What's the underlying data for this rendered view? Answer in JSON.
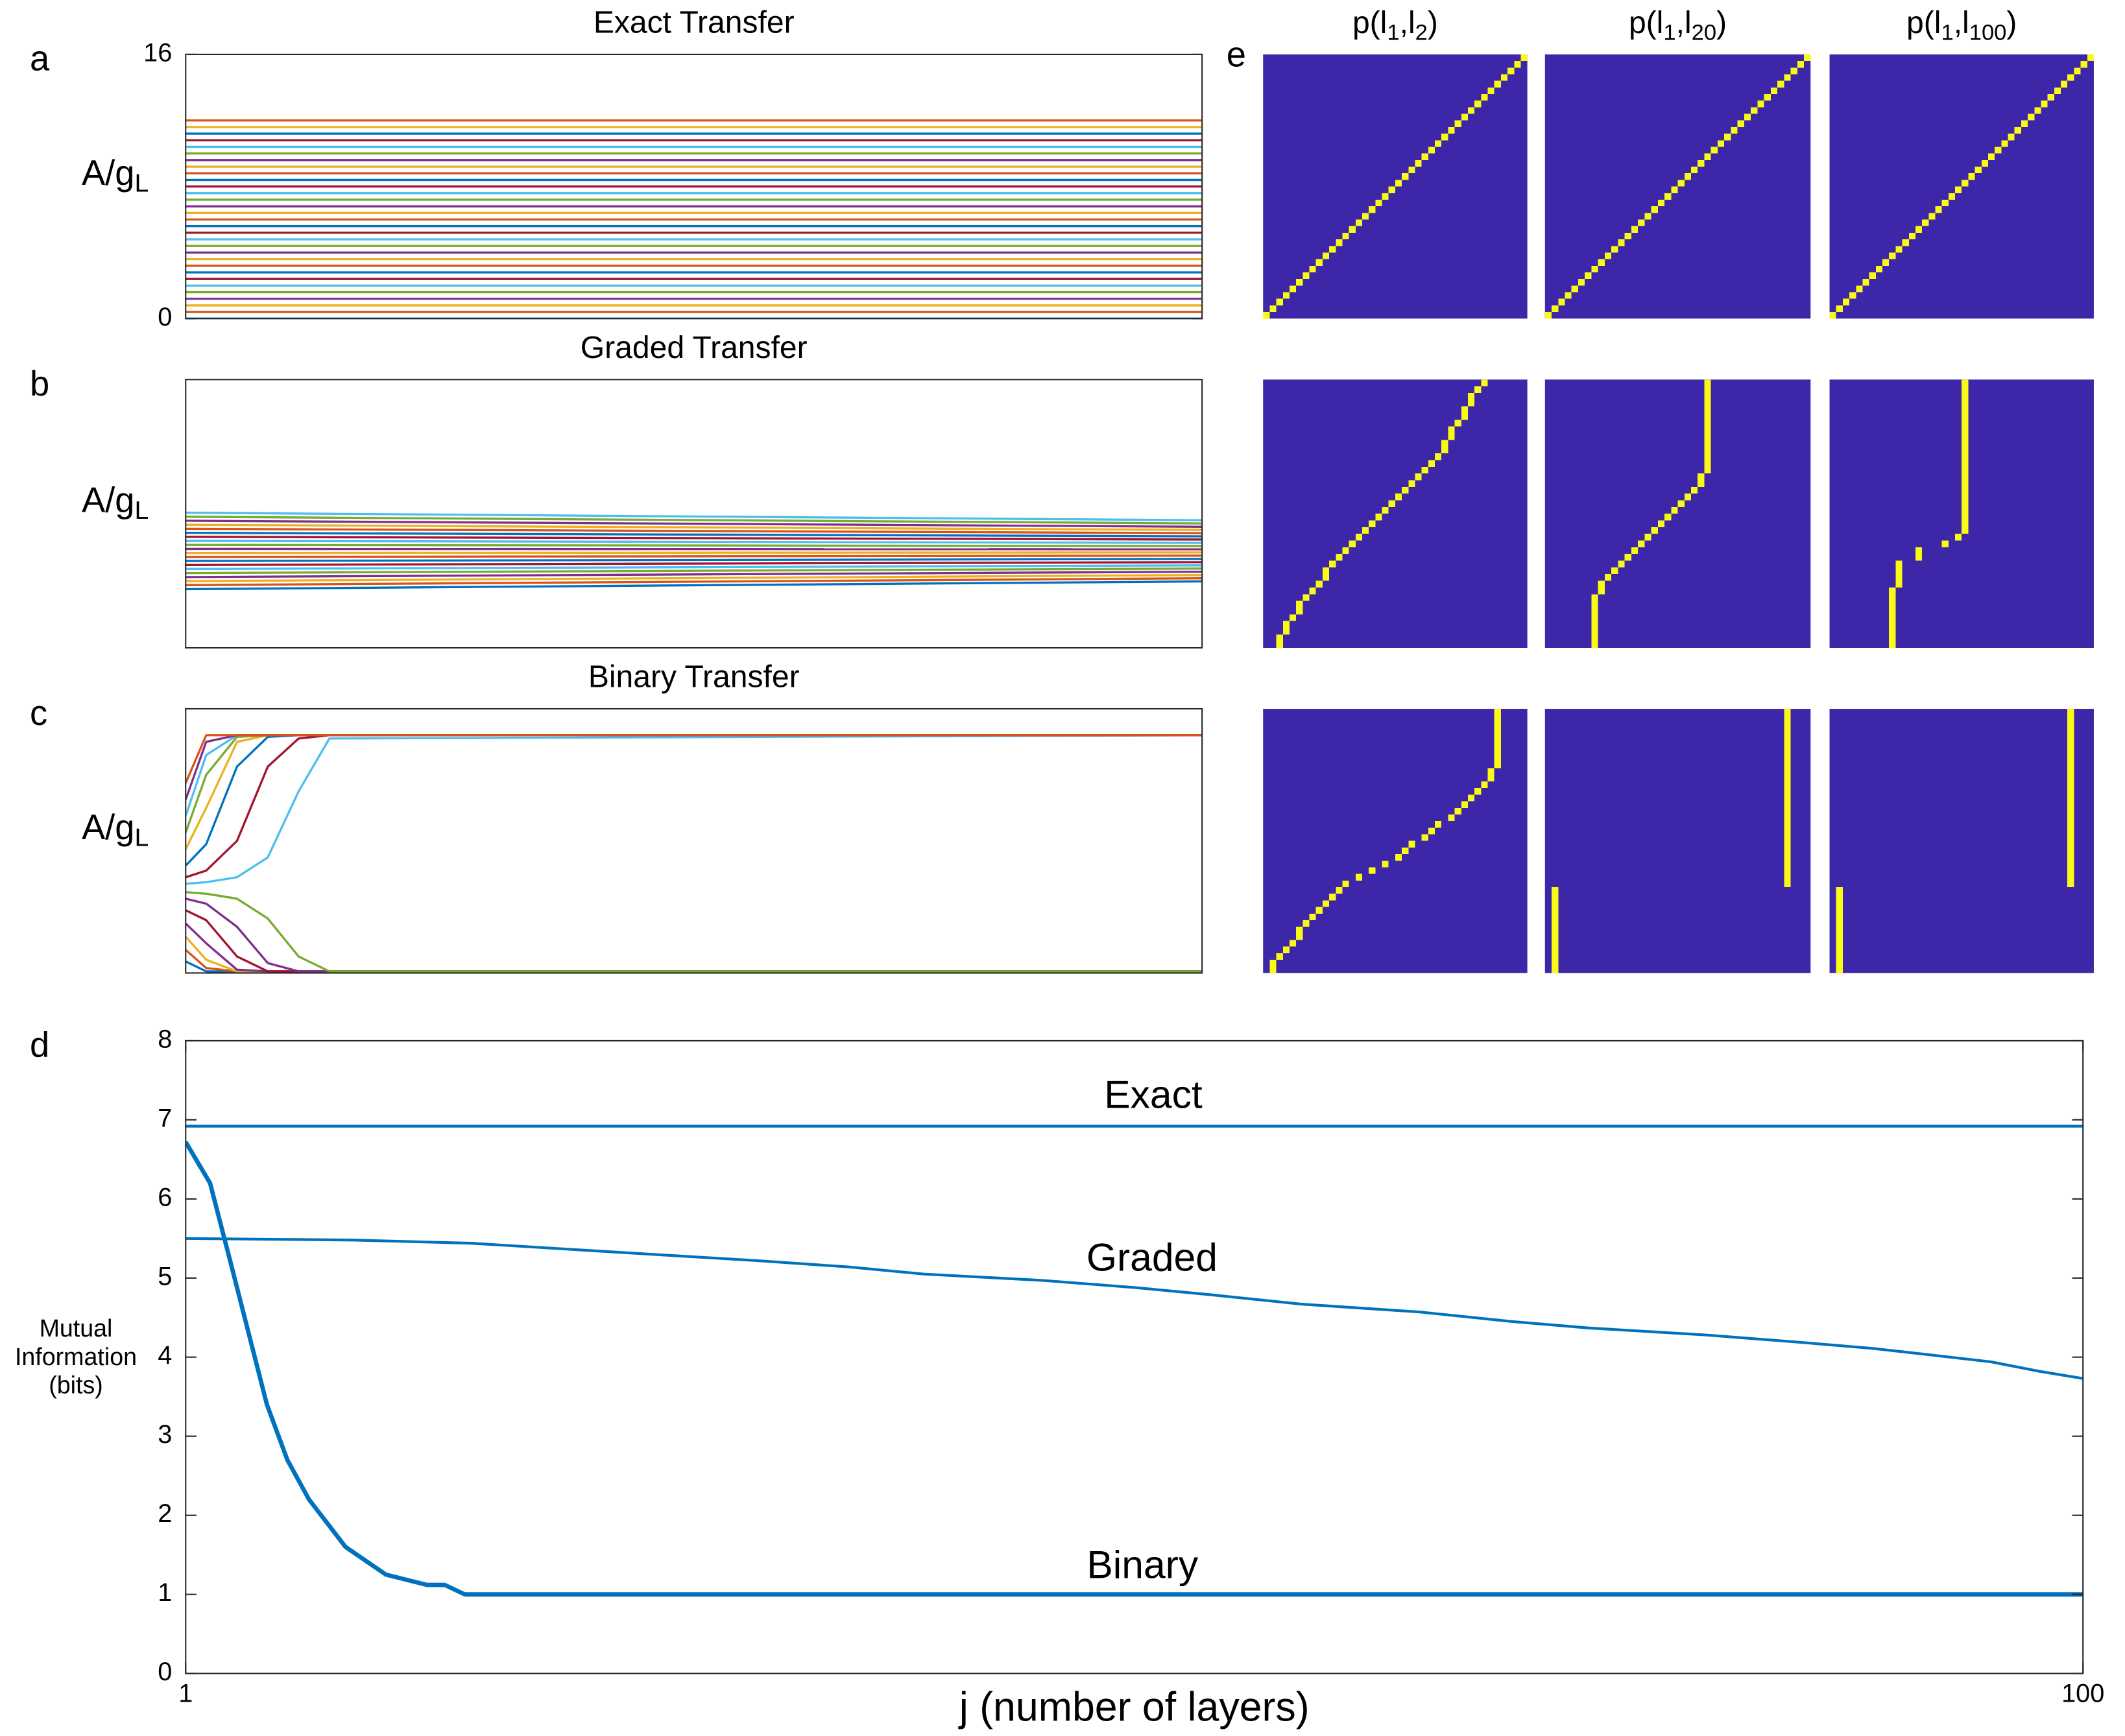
{
  "chart_data": [
    {
      "type": "line",
      "panel_label": "a",
      "title": "Exact Transfer",
      "ylabel_parts": [
        "A/g",
        "L"
      ],
      "x": [
        1,
        100
      ],
      "xlim": [
        1,
        100
      ],
      "ylim": [
        0,
        16
      ],
      "yticks": [
        0,
        16
      ],
      "series": [
        {
          "color": "#0072BD",
          "values": [
            0,
            0
          ]
        },
        {
          "color": "#D95319",
          "values": [
            0.4,
            0.4
          ]
        },
        {
          "color": "#EDB120",
          "values": [
            0.8,
            0.8
          ]
        },
        {
          "color": "#7E2F8E",
          "values": [
            1.2,
            1.2
          ]
        },
        {
          "color": "#77AC30",
          "values": [
            1.6,
            1.6
          ]
        },
        {
          "color": "#4DBEEE",
          "values": [
            2,
            2
          ]
        },
        {
          "color": "#A2142F",
          "values": [
            2.4,
            2.4
          ]
        },
        {
          "color": "#0072BD",
          "values": [
            2.8,
            2.8
          ]
        },
        {
          "color": "#D95319",
          "values": [
            3.2,
            3.2
          ]
        },
        {
          "color": "#EDB120",
          "values": [
            3.6,
            3.6
          ]
        },
        {
          "color": "#7E2F8E",
          "values": [
            4,
            4
          ]
        },
        {
          "color": "#77AC30",
          "values": [
            4.4,
            4.4
          ]
        },
        {
          "color": "#4DBEEE",
          "values": [
            4.8,
            4.8
          ]
        },
        {
          "color": "#A2142F",
          "values": [
            5.2,
            5.2
          ]
        },
        {
          "color": "#0072BD",
          "values": [
            5.6,
            5.6
          ]
        },
        {
          "color": "#D95319",
          "values": [
            6,
            6
          ]
        },
        {
          "color": "#EDB120",
          "values": [
            6.4,
            6.4
          ]
        },
        {
          "color": "#7E2F8E",
          "values": [
            6.8,
            6.8
          ]
        },
        {
          "color": "#77AC30",
          "values": [
            7.2,
            7.2
          ]
        },
        {
          "color": "#4DBEEE",
          "values": [
            7.6,
            7.6
          ]
        },
        {
          "color": "#A2142F",
          "values": [
            8,
            8
          ]
        },
        {
          "color": "#0072BD",
          "values": [
            8.4,
            8.4
          ]
        },
        {
          "color": "#D95319",
          "values": [
            8.8,
            8.8
          ]
        },
        {
          "color": "#EDB120",
          "values": [
            9.2,
            9.2
          ]
        },
        {
          "color": "#7E2F8E",
          "values": [
            9.6,
            9.6
          ]
        },
        {
          "color": "#77AC30",
          "values": [
            10,
            10
          ]
        },
        {
          "color": "#4DBEEE",
          "values": [
            10.4,
            10.4
          ]
        },
        {
          "color": "#A2142F",
          "values": [
            10.8,
            10.8
          ]
        },
        {
          "color": "#0072BD",
          "values": [
            11.2,
            11.2
          ]
        },
        {
          "color": "#EDB120",
          "values": [
            11.6,
            11.6
          ]
        },
        {
          "color": "#D95319",
          "values": [
            12,
            12
          ]
        }
      ]
    },
    {
      "type": "line",
      "panel_label": "b",
      "title": "Graded Transfer",
      "ylabel_parts": [
        "A/g",
        "L"
      ],
      "x": [
        1,
        100
      ],
      "xlim": [
        1,
        100
      ],
      "ylim": [
        0,
        16
      ],
      "series": [
        {
          "color": "#0072BD",
          "values": [
            3.5,
            3.96
          ]
        },
        {
          "color": "#D95319",
          "values": [
            3.74,
            4.15
          ]
        },
        {
          "color": "#EDB120",
          "values": [
            3.98,
            4.34
          ]
        },
        {
          "color": "#7E2F8E",
          "values": [
            4.22,
            4.54
          ]
        },
        {
          "color": "#77AC30",
          "values": [
            4.46,
            4.73
          ]
        },
        {
          "color": "#4DBEEE",
          "values": [
            4.7,
            4.92
          ]
        },
        {
          "color": "#A2142F",
          "values": [
            4.94,
            5.11
          ]
        },
        {
          "color": "#0072BD",
          "values": [
            5.18,
            5.3
          ]
        },
        {
          "color": "#D95319",
          "values": [
            5.42,
            5.5
          ]
        },
        {
          "color": "#EDB120",
          "values": [
            5.66,
            5.69
          ]
        },
        {
          "color": "#7E2F8E",
          "values": [
            5.9,
            5.88
          ]
        },
        {
          "color": "#77AC30",
          "values": [
            6.14,
            6.07
          ]
        },
        {
          "color": "#4DBEEE",
          "values": [
            6.38,
            6.26
          ]
        },
        {
          "color": "#A2142F",
          "values": [
            6.62,
            6.46
          ]
        },
        {
          "color": "#0072BD",
          "values": [
            6.86,
            6.65
          ]
        },
        {
          "color": "#D95319",
          "values": [
            7.1,
            6.84
          ]
        },
        {
          "color": "#EDB120",
          "values": [
            7.34,
            7.03
          ]
        },
        {
          "color": "#7E2F8E",
          "values": [
            7.58,
            7.22
          ]
        },
        {
          "color": "#77AC30",
          "values": [
            7.82,
            7.42
          ]
        },
        {
          "color": "#4DBEEE",
          "values": [
            8.06,
            7.61
          ]
        }
      ]
    },
    {
      "type": "line",
      "panel_label": "c",
      "title": "Binary Transfer",
      "ylabel_parts": [
        "A/g",
        "L"
      ],
      "x": [
        1,
        3,
        6,
        9,
        12,
        15,
        100
      ],
      "xlim": [
        1,
        100
      ],
      "ylim": [
        0,
        16
      ],
      "series": [
        {
          "color": "#0072BD",
          "values": [
            0.7,
            0.1,
            0.1,
            0.1,
            0.1,
            0.1,
            0.1
          ]
        },
        {
          "color": "#D95319",
          "values": [
            1.4,
            0.3,
            0.1,
            0.1,
            0.1,
            0.1,
            0.1
          ]
        },
        {
          "color": "#EDB120",
          "values": [
            2.2,
            0.8,
            0.1,
            0.1,
            0.1,
            0.1,
            0.1
          ]
        },
        {
          "color": "#7E2F8E",
          "values": [
            3,
            1.8,
            0.2,
            0.1,
            0.1,
            0.1,
            0.1
          ]
        },
        {
          "color": "#A2142F",
          "values": [
            3.8,
            3.2,
            1,
            0.1,
            0.1,
            0.1,
            0.1
          ]
        },
        {
          "color": "#7E2F8E",
          "values": [
            4.5,
            4.2,
            2.8,
            0.6,
            0.1,
            0.1,
            0.1
          ]
        },
        {
          "color": "#77AC30",
          "values": [
            4.9,
            4.8,
            4.5,
            3.3,
            1,
            0.1,
            0.1
          ]
        },
        {
          "color": "#4DBEEE",
          "values": [
            5.4,
            5.5,
            5.8,
            7,
            11,
            14.2,
            14.4
          ]
        },
        {
          "color": "#A2142F",
          "values": [
            5.8,
            6.2,
            8,
            12.5,
            14.2,
            14.4,
            14.4
          ]
        },
        {
          "color": "#0072BD",
          "values": [
            6.5,
            7.8,
            12.5,
            14.3,
            14.4,
            14.4,
            14.4
          ]
        },
        {
          "color": "#EDB120",
          "values": [
            7.5,
            10,
            14,
            14.4,
            14.4,
            14.4,
            14.4
          ]
        },
        {
          "color": "#77AC30",
          "values": [
            8.5,
            12,
            14.3,
            14.4,
            14.4,
            14.4,
            14.4
          ]
        },
        {
          "color": "#4DBEEE",
          "values": [
            9.5,
            13.2,
            14.4,
            14.4,
            14.4,
            14.4,
            14.4
          ]
        },
        {
          "color": "#7E2F8E",
          "values": [
            10.5,
            14,
            14.4,
            14.4,
            14.4,
            14.4,
            14.4
          ]
        },
        {
          "color": "#D95319",
          "values": [
            11.5,
            14.4,
            14.4,
            14.4,
            14.4,
            14.4,
            14.4
          ]
        }
      ]
    },
    {
      "type": "line",
      "panel_label": "d",
      "xscale": "log",
      "xlabel": "j (number of layers)",
      "ylabel_lines": [
        "Mutual",
        "Information",
        "(bits)"
      ],
      "xlim": [
        1,
        100
      ],
      "xticks": [
        1,
        100
      ],
      "ylim": [
        0,
        8
      ],
      "yticks": [
        0,
        1,
        2,
        3,
        4,
        5,
        6,
        7,
        8
      ],
      "series": [
        {
          "name": "Exact",
          "color": "#0072BD",
          "line_width": 2,
          "x": [
            1,
            100
          ],
          "values": [
            6.92,
            6.92
          ]
        },
        {
          "name": "Graded",
          "color": "#0072BD",
          "line_width": 2,
          "x": [
            1,
            1.5,
            2,
            3,
            4,
            5,
            6,
            8,
            10,
            12,
            15,
            20,
            25,
            30,
            40,
            50,
            60,
            70,
            80,
            90,
            100
          ],
          "values": [
            5.5,
            5.48,
            5.44,
            5.31,
            5.22,
            5.14,
            5.05,
            4.97,
            4.88,
            4.79,
            4.67,
            4.57,
            4.45,
            4.37,
            4.28,
            4.19,
            4.11,
            4.02,
            3.94,
            3.82,
            3.73
          ]
        },
        {
          "name": "Binary",
          "color": "#0072BD",
          "line_width": 3.2,
          "x": [
            1,
            1.061,
            1.115,
            1.171,
            1.218,
            1.28,
            1.349,
            1.474,
            1.626,
            1.796,
            1.875,
            1.969,
            100
          ],
          "values": [
            6.72,
            6.2,
            5.2,
            4.2,
            3.4,
            2.7,
            2.2,
            1.6,
            1.25,
            1.12,
            1.12,
            1,
            1
          ]
        }
      ]
    },
    {
      "type": "heatmap",
      "panel_label": "e",
      "title_parts": [
        "p(l",
        "1",
        ",l",
        "2",
        ")"
      ],
      "size": 40,
      "background": "#3e26a8",
      "color": "#f9fb14",
      "peak_columns": [
        0,
        1,
        2,
        3,
        4,
        5,
        6,
        7,
        8,
        9,
        10,
        11,
        12,
        13,
        14,
        15,
        16,
        17,
        18,
        19,
        20,
        21,
        22,
        23,
        24,
        25,
        26,
        27,
        28,
        29,
        30,
        31,
        32,
        33,
        34,
        35,
        36,
        37,
        38,
        39
      ]
    },
    {
      "type": "heatmap",
      "title_parts": [
        "p(l",
        "1",
        ",l",
        "20",
        ")"
      ],
      "size": 40,
      "background": "#3e26a8",
      "color": "#f9fb14",
      "peak_columns": [
        0,
        1,
        2,
        3,
        4,
        5,
        6,
        7,
        8,
        9,
        10,
        11,
        12,
        13,
        14,
        15,
        16,
        17,
        18,
        19,
        20,
        21,
        22,
        23,
        24,
        25,
        26,
        27,
        28,
        29,
        30,
        31,
        32,
        33,
        34,
        35,
        36,
        37,
        38,
        39
      ]
    },
    {
      "type": "heatmap",
      "title_parts": [
        "p(l",
        "1",
        ",l",
        "100",
        ")"
      ],
      "size": 40,
      "background": "#3e26a8",
      "color": "#f9fb14",
      "peak_columns": [
        0,
        1,
        2,
        3,
        4,
        5,
        6,
        7,
        8,
        9,
        10,
        11,
        12,
        13,
        14,
        15,
        16,
        17,
        18,
        19,
        20,
        21,
        22,
        23,
        24,
        25,
        26,
        27,
        28,
        29,
        30,
        31,
        32,
        33,
        34,
        35,
        36,
        37,
        38,
        39
      ]
    },
    {
      "type": "heatmap",
      "size": 40,
      "background": "#3e26a8",
      "color": "#f9fb14",
      "peak_columns": [
        2,
        2,
        3,
        3,
        4,
        5,
        5,
        6,
        7,
        8,
        9,
        9,
        10,
        11,
        12,
        13,
        14,
        15,
        16,
        17,
        18,
        19,
        20,
        21,
        22,
        23,
        24,
        25,
        26,
        27,
        27,
        28,
        28,
        29,
        30,
        30,
        31,
        31,
        32,
        33
      ]
    },
    {
      "type": "heatmap",
      "size": 40,
      "background": "#3e26a8",
      "color": "#f9fb14",
      "peak_columns": [
        7,
        7,
        7,
        7,
        7,
        7,
        7,
        7,
        8,
        8,
        9,
        10,
        11,
        12,
        13,
        14,
        15,
        16,
        17,
        18,
        19,
        20,
        21,
        22,
        23,
        23,
        24,
        24,
        24,
        24,
        24,
        24,
        24,
        24,
        24,
        24,
        24,
        24,
        24,
        24
      ]
    },
    {
      "type": "heatmap",
      "size": 40,
      "background": "#3e26a8",
      "color": "#f9fb14",
      "peak_columns": [
        9,
        9,
        9,
        9,
        9,
        9,
        9,
        9,
        9,
        10,
        10,
        10,
        10,
        13,
        13,
        17,
        19,
        20,
        20,
        20,
        20,
        20,
        20,
        20,
        20,
        20,
        20,
        20,
        20,
        20,
        20,
        20,
        20,
        20,
        20,
        20,
        20,
        20,
        20,
        20
      ]
    },
    {
      "type": "heatmap",
      "size": 40,
      "background": "#3e26a8",
      "color": "#f9fb14",
      "peak_columns": [
        1,
        1,
        2,
        3,
        4,
        5,
        5,
        6,
        7,
        8,
        9,
        10,
        11,
        12,
        14,
        16,
        18,
        20,
        21,
        22,
        24,
        25,
        26,
        28,
        29,
        30,
        31,
        32,
        33,
        34,
        34,
        35,
        35,
        35,
        35,
        35,
        35,
        35,
        35,
        35
      ]
    },
    {
      "type": "heatmap",
      "size": 40,
      "background": "#3e26a8",
      "color": "#f9fb14",
      "peak_columns": [
        1,
        1,
        1,
        1,
        1,
        1,
        1,
        1,
        1,
        1,
        1,
        1,
        1,
        36,
        36,
        36,
        36,
        36,
        36,
        36,
        36,
        36,
        36,
        36,
        36,
        36,
        36,
        36,
        36,
        36,
        36,
        36,
        36,
        36,
        36,
        36,
        36,
        36,
        36,
        36
      ]
    },
    {
      "type": "heatmap",
      "size": 40,
      "background": "#3e26a8",
      "color": "#f9fb14",
      "peak_columns": [
        1,
        1,
        1,
        1,
        1,
        1,
        1,
        1,
        1,
        1,
        1,
        1,
        1,
        36,
        36,
        36,
        36,
        36,
        36,
        36,
        36,
        36,
        36,
        36,
        36,
        36,
        36,
        36,
        36,
        36,
        36,
        36,
        36,
        36,
        36,
        36,
        36,
        36,
        36,
        36
      ]
    }
  ]
}
